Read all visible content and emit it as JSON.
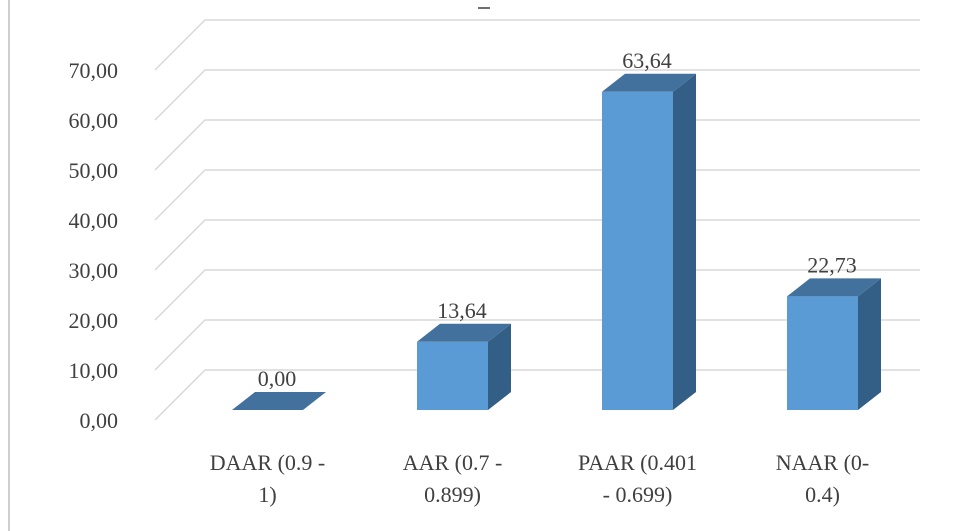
{
  "chart_data": {
    "type": "bar",
    "style": "3d-column",
    "categories": [
      [
        "DAAR (0.9 -",
        "1)"
      ],
      [
        "AAR (0.7 -",
        "0.899)"
      ],
      [
        "PAAR (0.401",
        "- 0.699)"
      ],
      [
        "NAAR (0-",
        "0.4)"
      ]
    ],
    "values": [
      0.0,
      13.64,
      63.64,
      22.73
    ],
    "data_labels": [
      "0,00",
      "13,64",
      "63,64",
      "22,73"
    ],
    "y_ticks": [
      "0,00",
      "10,00",
      "20,00",
      "30,00",
      "40,00",
      "50,00",
      "60,00",
      "70,00"
    ],
    "ylim": [
      0,
      70
    ],
    "title": "",
    "xlabel": "",
    "ylabel": "",
    "grid": true,
    "legend": "none",
    "colors": {
      "front": "#5b9bd5",
      "top": "#41719c",
      "side": "#335f87",
      "grid": "#d9d9d9",
      "text": "#404040"
    }
  }
}
